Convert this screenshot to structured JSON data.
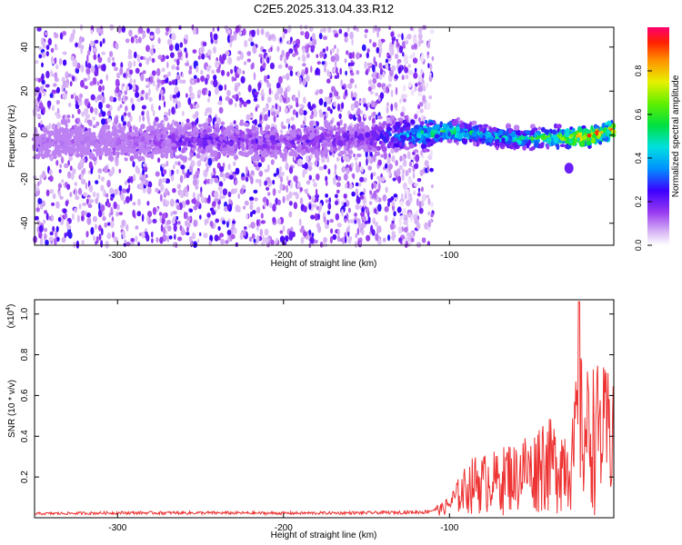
{
  "title": "C2E5.2025.313.04.33.R12",
  "chart_data": [
    {
      "type": "heatmap",
      "xlabel": "Height of straight line (km)",
      "ylabel": "Frequency (Hz)",
      "xlim": [
        -350,
        -1
      ],
      "ylim": [
        -50,
        49
      ],
      "xticks": [
        -300,
        -200,
        -100
      ],
      "xtick_labels": [
        "-300",
        "-200",
        "-100"
      ],
      "yticks": [
        -40,
        -20,
        0,
        20,
        40
      ],
      "ytick_labels": [
        "-40",
        "-20",
        "0",
        "20",
        "40"
      ],
      "colorbar": {
        "label": "Normalized spectral amplitude",
        "range": [
          0,
          1
        ],
        "ticks": [
          0.0,
          0.2,
          0.4,
          0.6,
          0.8
        ],
        "tick_labels": [
          "0.0",
          "0.2",
          "0.4",
          "0.6",
          "0.8"
        ],
        "colormap": "rainbow"
      },
      "ridge": {
        "description_points_x": [
          -350,
          -300,
          -250,
          -200,
          -150,
          -110,
          -100,
          -80,
          -60,
          -40,
          -20,
          -1
        ],
        "description_points_freq": [
          -3,
          -3,
          -2,
          -3,
          -1,
          1,
          2,
          0,
          -2,
          -1,
          -1,
          2
        ],
        "amplitude": [
          0.12,
          0.12,
          0.22,
          0.2,
          0.2,
          0.55,
          0.6,
          0.45,
          0.5,
          0.6,
          0.9,
          0.85
        ]
      },
      "noise_extent_x": -110,
      "blob": {
        "x": -28,
        "freq": -15,
        "amplitude": 0.2
      }
    },
    {
      "type": "line",
      "xlabel": "Height of straight line (km)",
      "ylabel": "SNR (10 * v/v)",
      "yscale_label": "(x10",
      "yscale_exponent": "4",
      "xlim": [
        -350,
        -1
      ],
      "ylim": [
        0,
        1.07
      ],
      "xticks": [
        -300,
        -200,
        -100
      ],
      "xtick_labels": [
        "-300",
        "-200",
        "-100"
      ],
      "yticks": [
        0.2,
        0.4,
        0.6,
        0.8,
        1.0
      ],
      "ytick_labels": [
        "0.2",
        "0.4",
        "0.6",
        "0.8",
        "1.0"
      ],
      "color": "#ee3333",
      "series": [
        {
          "name": "SNR",
          "x": [
            -350,
            -300,
            -250,
            -200,
            -150,
            -115,
            -105,
            -100,
            -95,
            -90,
            -85,
            -80,
            -75,
            -70,
            -65,
            -60,
            -55,
            -50,
            -45,
            -40,
            -35,
            -30,
            -25,
            -22,
            -20,
            -15,
            -10,
            -5,
            -1
          ],
          "envelope": [
            0.025,
            0.03,
            0.03,
            0.028,
            0.03,
            0.035,
            0.06,
            0.1,
            0.18,
            0.25,
            0.3,
            0.3,
            0.33,
            0.3,
            0.38,
            0.35,
            0.42,
            0.38,
            0.52,
            0.48,
            0.46,
            0.5,
            0.5,
            1.06,
            0.7,
            0.76,
            0.75,
            0.72,
            0.8
          ]
        }
      ]
    }
  ]
}
